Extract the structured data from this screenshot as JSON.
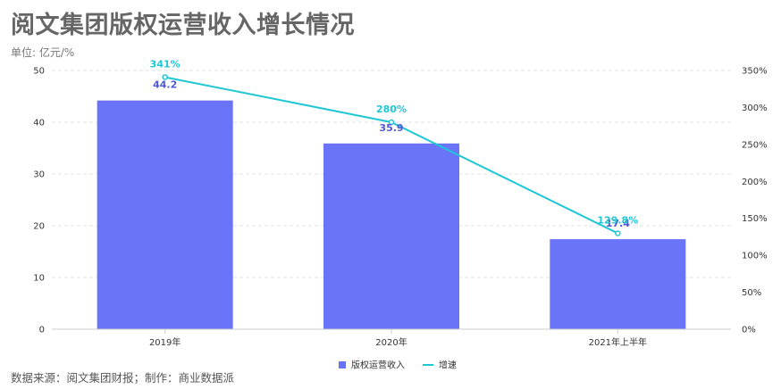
{
  "title": "阅文集团版权运营收入增长情况",
  "unit_label": "单位: 亿元/%",
  "source_note": "数据来源：阅文集团财报；制作：商业数据派",
  "colors": {
    "bar": "#6A74F8",
    "line": "#1FC7D4",
    "bar_label": "#4F58D8",
    "grid": "#E3E3E3"
  },
  "chart_data": {
    "type": "bar",
    "categories": [
      "2019年",
      "2020年",
      "2021年上半年"
    ],
    "series": [
      {
        "name": "版权运营收入",
        "type": "bar",
        "axis": "left",
        "values": [
          44.2,
          35.9,
          17.4
        ],
        "labels": [
          "44.2",
          "35.9",
          "17.4"
        ]
      },
      {
        "name": "增速",
        "type": "line",
        "axis": "right",
        "values": [
          341,
          280,
          129.8
        ],
        "labels": [
          "341%",
          "280%",
          "129.8%"
        ]
      }
    ],
    "y_left": {
      "min": 0,
      "max": 50,
      "ticks": [
        "0",
        "10",
        "20",
        "30",
        "40",
        "50"
      ]
    },
    "y_right": {
      "min": 0,
      "max": 350,
      "ticks": [
        "0%",
        "50%",
        "100%",
        "150%",
        "200%",
        "250%",
        "300%",
        "350%"
      ]
    },
    "grid": true,
    "legend_position": "bottom"
  }
}
